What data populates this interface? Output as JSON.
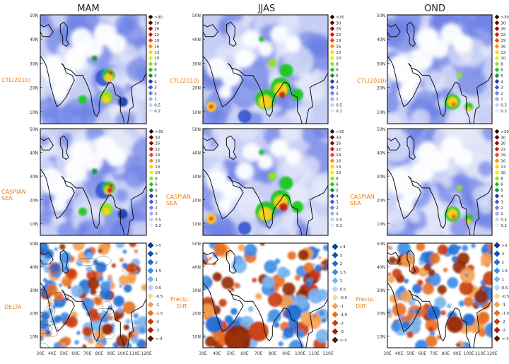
{
  "columns": [
    "MAM",
    "JJAS",
    "OND"
  ],
  "row_labels": {
    "ctl": "CTL(2010)",
    "caspian_line1": "CASPIAN",
    "caspian_line2": "SEA",
    "delta": "DELTA",
    "precip_line1": "Precip.",
    "precip_line2": "Diff."
  },
  "lat_labels": [
    "50N",
    "40N",
    "30N",
    "20N",
    "10N"
  ],
  "lon_labels": [
    "30E",
    "40E",
    "50E",
    "60E",
    "70E",
    "80E",
    "90E",
    "100E",
    "110E",
    "120E"
  ],
  "legend_precip": {
    "labels": [
      ">30",
      "30",
      "26",
      "22",
      "19",
      "16",
      "13",
      "10",
      "8",
      "6",
      "5",
      "4",
      "3",
      "2",
      "1",
      "0.5",
      "0.2"
    ],
    "colors": [
      "#200000",
      "#5a0000",
      "#8b0a0a",
      "#c81e1e",
      "#e84a1a",
      "#ff8c1a",
      "#ffd21a",
      "#e6f01a",
      "#8ce61a",
      "#1ec81e",
      "#148c3c",
      "#1e3cb4",
      "#3c5ad2",
      "#6e82e6",
      "#a0aff0",
      "#c8cff5",
      "#e6e9fa"
    ]
  },
  "legend_diff": {
    "labels": [
      ">3",
      "3",
      "2",
      "1.5",
      "1",
      "0.5",
      "-0.5",
      "-1",
      "-1.5",
      "-2",
      "-3",
      "<-3"
    ],
    "colors": [
      "#0a3c8c",
      "#1450b4",
      "#1e6ed2",
      "#3c8ce6",
      "#78b4f0",
      "#b4d7f8",
      "#fad7a0",
      "#f5a050",
      "#e66e1e",
      "#c83c0a",
      "#962805",
      "#5a1400"
    ]
  },
  "colors": {
    "frame": "#000000",
    "label_orange": "#e8821e",
    "axis_text": "#333333",
    "coast": "#111111"
  }
}
